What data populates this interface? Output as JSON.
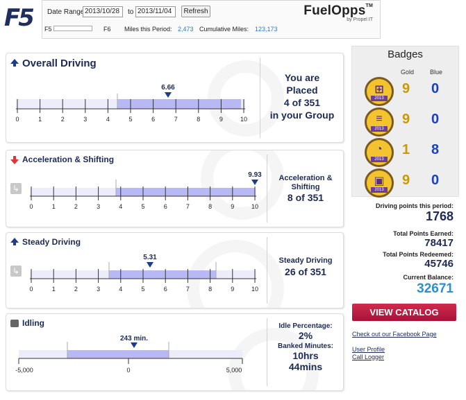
{
  "header": {
    "logo": "F5",
    "date_range_label": "Date Range",
    "date_from": "2013/10/28",
    "to_label": "to",
    "date_to": "2013/11/04",
    "refresh_label": "Refresh",
    "slider_left": "F5",
    "slider_right": "F6",
    "miles_period_label": "Miles this Period:",
    "miles_period_value": "2,473",
    "cumulative_label": "Cumulative Miles:",
    "cumulative_value": "123,173",
    "brand_name": "FuelOpps",
    "brand_tm": "TM",
    "brand_sub": "by Propel IT"
  },
  "overall": {
    "title": "Overall Driving",
    "score": "6.66",
    "ticks": [
      "0",
      "1",
      "2",
      "3",
      "4",
      "5",
      "6",
      "7",
      "8",
      "9",
      "10"
    ],
    "placed_line1": "You are",
    "placed_line2": "Placed",
    "placed_rank": "4 of 351",
    "placed_line4": "in your Group"
  },
  "accel": {
    "title": "Acceleration & Shifting",
    "score": "9.93",
    "ticks": [
      "0",
      "1",
      "2",
      "3",
      "4",
      "5",
      "6",
      "7",
      "8",
      "9",
      "10"
    ],
    "right_label1": "Acceleration &",
    "right_label2": "Shifting",
    "rank": "8 of 351"
  },
  "steady": {
    "title": "Steady Driving",
    "score": "5.31",
    "ticks": [
      "0",
      "1",
      "2",
      "3",
      "4",
      "5",
      "6",
      "7",
      "8",
      "9",
      "10"
    ],
    "right_label": "Steady Driving",
    "rank": "26 of 351"
  },
  "idling": {
    "title": "Idling",
    "value": "243 min.",
    "ticks": [
      "-5,000",
      "0",
      "5,000"
    ],
    "idle_pct_label": "Idle Percentage:",
    "idle_pct": "2%",
    "banked_label": "Banked Minutes:",
    "banked_hrs": "10hrs",
    "banked_mins": "44mins"
  },
  "badges": {
    "title": "Badges",
    "gold_label": "Gold",
    "blue_label": "Blue",
    "rows": [
      {
        "icon": "shift-pattern-icon",
        "year": "2013",
        "gold": "9",
        "blue": "0"
      },
      {
        "icon": "road-icon",
        "year": "2013",
        "gold": "9",
        "blue": "0"
      },
      {
        "icon": "speedometer-icon",
        "year": "2013",
        "gold": "1",
        "blue": "8"
      },
      {
        "icon": "fuel-pump-icon",
        "year": "2013",
        "gold": "9",
        "blue": "0"
      }
    ]
  },
  "points": {
    "period_label": "Driving points this period:",
    "period_value": "1768",
    "earned_label": "Total Points Earned:",
    "earned_value": "78417",
    "redeemed_label": "Total Points Redeemed:",
    "redeemed_value": "45746",
    "balance_label": "Current Balance:",
    "balance_value": "32671"
  },
  "links": {
    "catalog": "VIEW CATALOG",
    "facebook": "Check out our Facebook Page",
    "profile": "User Profile",
    "logger": "Call Logger"
  },
  "colors": {
    "navy": "#1c2a55",
    "bar_fill": "#b8b8f4",
    "bar_light": "#ececfb",
    "catalog": "#c01f45",
    "balance": "#2b8fd0"
  }
}
